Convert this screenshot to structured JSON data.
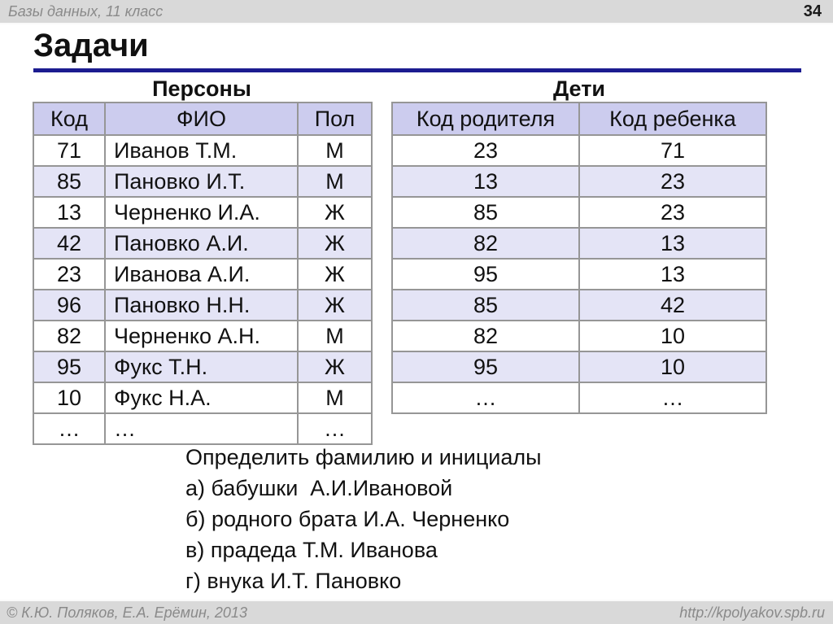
{
  "header": {
    "course_label": "Базы данных, 11 класс",
    "page_number": "34"
  },
  "title": "Задачи",
  "tables": {
    "persons": {
      "title": "Персоны",
      "columns": [
        "Код",
        "ФИО",
        "Пол"
      ],
      "rows": [
        [
          "71",
          "Иванов Т.М.",
          "М"
        ],
        [
          "85",
          "Пановко И.Т.",
          "М"
        ],
        [
          "13",
          "Черненко И.А.",
          "Ж"
        ],
        [
          "42",
          "Пановко А.И.",
          "Ж"
        ],
        [
          "23",
          "Иванова А.И.",
          "Ж"
        ],
        [
          "96",
          "Пановко Н.Н.",
          "Ж"
        ],
        [
          "82",
          "Черненко А.Н.",
          "М"
        ],
        [
          "95",
          "Фукс Т.Н.",
          "Ж"
        ],
        [
          "10",
          "Фукс Н.А.",
          "М"
        ],
        [
          "…",
          "…",
          "…"
        ]
      ]
    },
    "children": {
      "title": "Дети",
      "columns": [
        "Код родителя",
        "Код ребенка"
      ],
      "rows": [
        [
          "23",
          "71"
        ],
        [
          "13",
          "23"
        ],
        [
          "85",
          "23"
        ],
        [
          "82",
          "13"
        ],
        [
          "95",
          "13"
        ],
        [
          "85",
          "42"
        ],
        [
          "82",
          "10"
        ],
        [
          "95",
          "10"
        ],
        [
          "…",
          "…"
        ]
      ]
    }
  },
  "task": {
    "intro": "Определить фамилию и инициалы",
    "items": [
      "а) бабушки  А.И.Ивановой",
      "б) родного брата И.А. Черненко",
      "в) прадеда Т.М. Иванова",
      "г) внука И.Т. Пановко"
    ]
  },
  "footer": {
    "copyright": "© К.Ю. Поляков, Е.А. Ерёмин, 2013",
    "url": "http://kpolyakov.spb.ru"
  },
  "colors": {
    "title_rule": "#1c1c90",
    "table_header_bg": "#ccccee",
    "table_alt_row_bg": "#e4e4f6",
    "bar_bg": "#d9d9d9",
    "bar_text": "#8a8a8a"
  }
}
